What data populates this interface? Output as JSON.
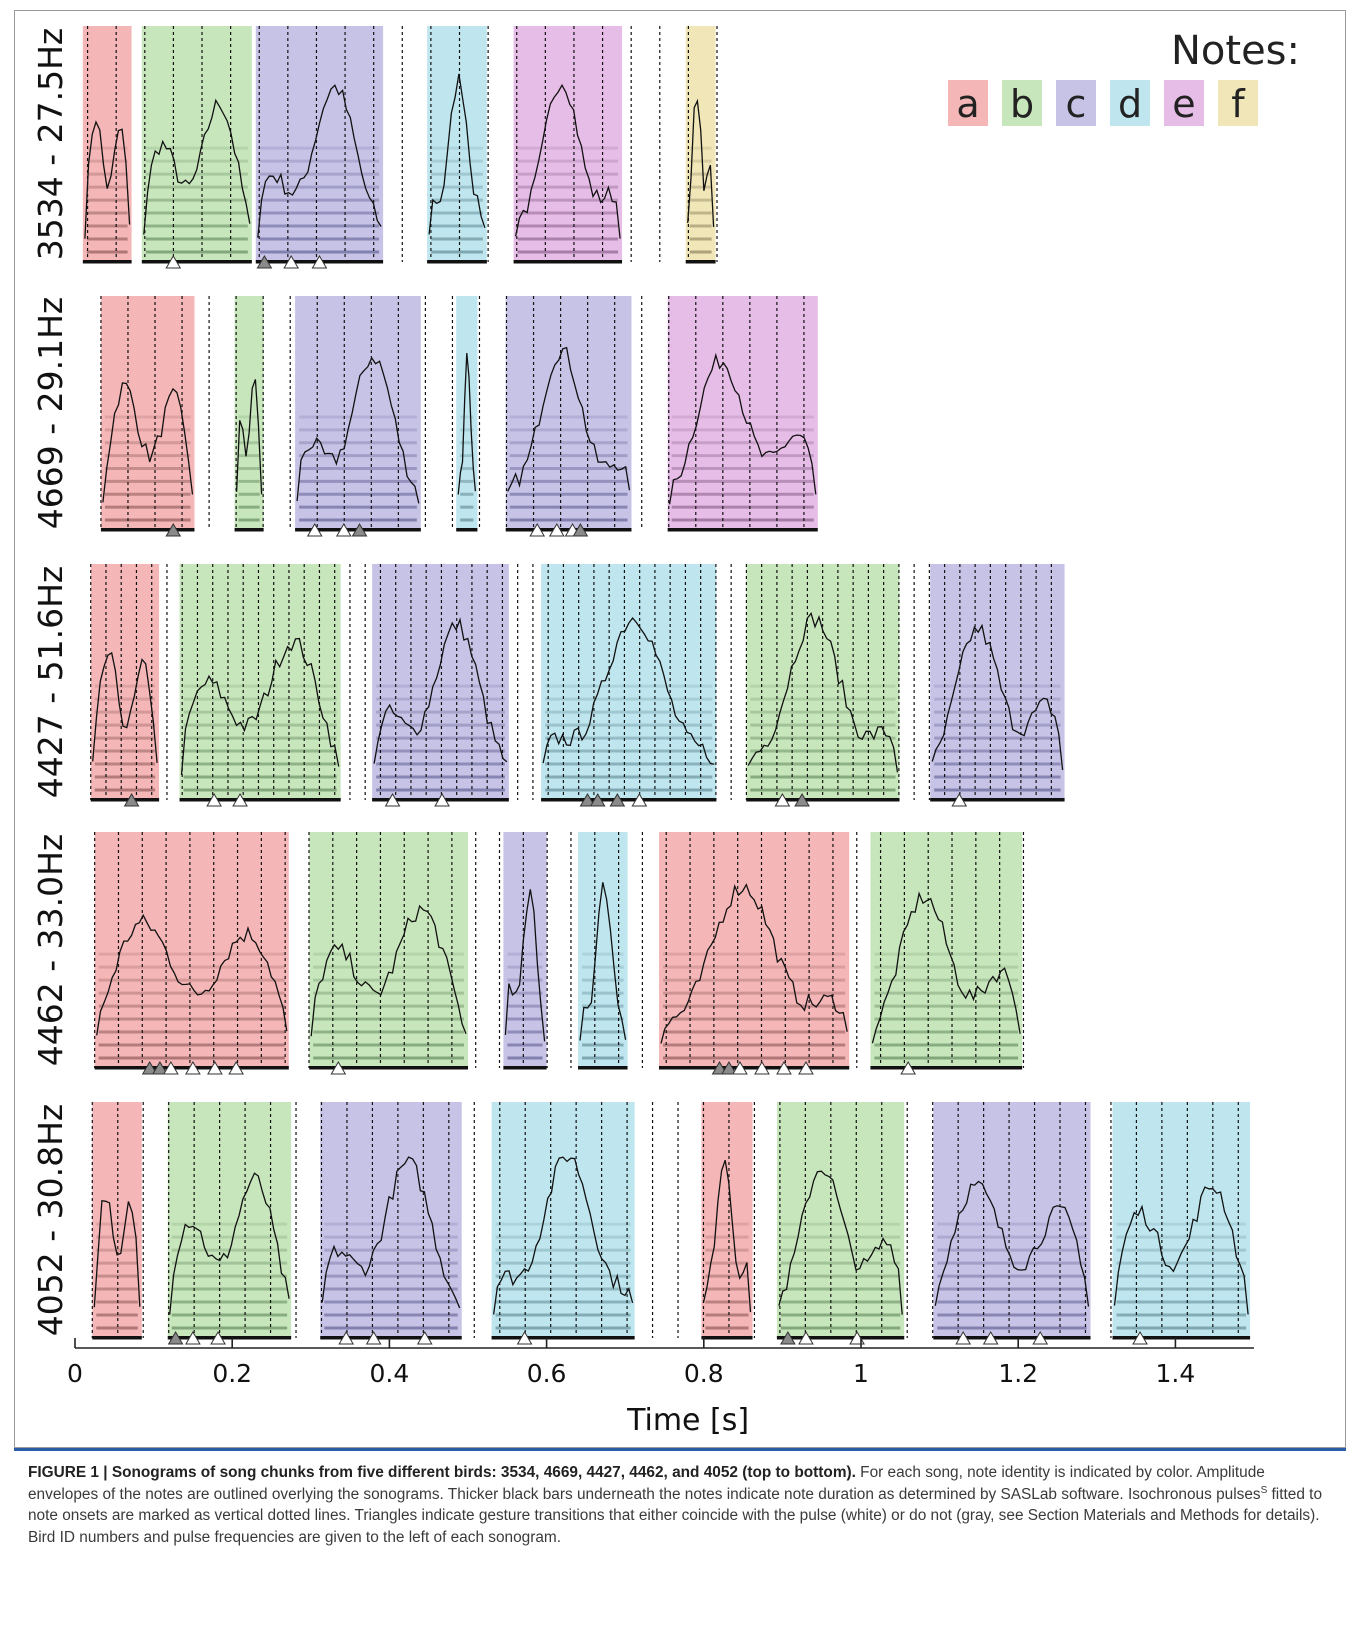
{
  "legend": {
    "title": "Notes:",
    "notes": [
      {
        "label": "a",
        "color": "#f4b6b6"
      },
      {
        "label": "b",
        "color": "#c8e6bc"
      },
      {
        "label": "c",
        "color": "#c7c3e6"
      },
      {
        "label": "d",
        "color": "#bfe6ef"
      },
      {
        "label": "e",
        "color": "#e6bde6"
      },
      {
        "label": "f",
        "color": "#f0e6b8"
      }
    ]
  },
  "chart_data": {
    "type": "sonogram-panels",
    "xlabel": "Time [s]",
    "xlim": [
      0,
      1.5
    ],
    "xticks": [
      0,
      0.2,
      0.4,
      0.6,
      0.8,
      1,
      1.2,
      1.4
    ],
    "xtick_labels": [
      "0",
      "0.2",
      "0.4",
      "0.6",
      "0.8",
      "1",
      "1.2",
      "1.4"
    ],
    "panels": [
      {
        "label": "3534 - 27.5Hz",
        "pulse_period": 0.0364,
        "pulse_start": 0.016,
        "pulse_end": 0.851,
        "notes": [
          {
            "note": "a",
            "start": 0.01,
            "end": 0.072
          },
          {
            "note": "b",
            "start": 0.085,
            "end": 0.225
          },
          {
            "note": "c",
            "start": 0.23,
            "end": 0.392
          },
          {
            "note": "d",
            "start": 0.448,
            "end": 0.524
          },
          {
            "note": "e",
            "start": 0.558,
            "end": 0.696
          },
          {
            "note": "f",
            "start": 0.777,
            "end": 0.815
          }
        ],
        "triangles": [
          {
            "t": 0.125,
            "kind": "white"
          },
          {
            "t": 0.241,
            "kind": "gray"
          },
          {
            "t": 0.275,
            "kind": "white"
          },
          {
            "t": 0.311,
            "kind": "white"
          }
        ]
      },
      {
        "label": "4669 - 29.1Hz",
        "pulse_period": 0.0344,
        "pulse_start": 0.033,
        "pulse_end": 0.958,
        "notes": [
          {
            "note": "a",
            "start": 0.033,
            "end": 0.152
          },
          {
            "note": "b",
            "start": 0.203,
            "end": 0.24
          },
          {
            "note": "c",
            "start": 0.28,
            "end": 0.44
          },
          {
            "note": "d",
            "start": 0.485,
            "end": 0.512
          },
          {
            "note": "c",
            "start": 0.548,
            "end": 0.708
          },
          {
            "note": "e",
            "start": 0.754,
            "end": 0.945
          }
        ],
        "triangles": [
          {
            "t": 0.125,
            "kind": "gray"
          },
          {
            "t": 0.305,
            "kind": "white"
          },
          {
            "t": 0.342,
            "kind": "white"
          },
          {
            "t": 0.362,
            "kind": "gray"
          },
          {
            "t": 0.588,
            "kind": "white"
          },
          {
            "t": 0.613,
            "kind": "white"
          },
          {
            "t": 0.633,
            "kind": "white"
          },
          {
            "t": 0.643,
            "kind": "gray"
          }
        ]
      },
      {
        "label": "4427 - 51.6Hz",
        "pulse_period": 0.0194,
        "pulse_start": 0.02,
        "pulse_end": 1.259,
        "notes": [
          {
            "note": "a",
            "start": 0.02,
            "end": 0.107
          },
          {
            "note": "b",
            "start": 0.133,
            "end": 0.338
          },
          {
            "note": "c",
            "start": 0.378,
            "end": 0.552
          },
          {
            "note": "d",
            "start": 0.593,
            "end": 0.816
          },
          {
            "note": "b",
            "start": 0.854,
            "end": 1.049
          },
          {
            "note": "c",
            "start": 1.088,
            "end": 1.259
          }
        ],
        "triangles": [
          {
            "t": 0.072,
            "kind": "gray"
          },
          {
            "t": 0.177,
            "kind": "white"
          },
          {
            "t": 0.21,
            "kind": "white"
          },
          {
            "t": 0.404,
            "kind": "white"
          },
          {
            "t": 0.467,
            "kind": "white"
          },
          {
            "t": 0.652,
            "kind": "gray"
          },
          {
            "t": 0.665,
            "kind": "gray"
          },
          {
            "t": 0.69,
            "kind": "gray"
          },
          {
            "t": 0.718,
            "kind": "white"
          },
          {
            "t": 0.9,
            "kind": "white"
          },
          {
            "t": 0.925,
            "kind": "gray"
          },
          {
            "t": 1.125,
            "kind": "white"
          }
        ]
      },
      {
        "label": "4462 - 33.0Hz",
        "pulse_period": 0.0303,
        "pulse_start": 0.025,
        "pulse_end": 1.229,
        "notes": [
          {
            "note": "a",
            "start": 0.025,
            "end": 0.272
          },
          {
            "note": "b",
            "start": 0.298,
            "end": 0.5
          },
          {
            "note": "c",
            "start": 0.545,
            "end": 0.6
          },
          {
            "note": "d",
            "start": 0.64,
            "end": 0.703
          },
          {
            "note": "a",
            "start": 0.743,
            "end": 0.985
          },
          {
            "note": "b",
            "start": 1.012,
            "end": 1.205
          }
        ],
        "triangles": [
          {
            "t": 0.095,
            "kind": "gray"
          },
          {
            "t": 0.108,
            "kind": "gray"
          },
          {
            "t": 0.122,
            "kind": "white"
          },
          {
            "t": 0.15,
            "kind": "white"
          },
          {
            "t": 0.178,
            "kind": "white"
          },
          {
            "t": 0.205,
            "kind": "white"
          },
          {
            "t": 0.335,
            "kind": "white"
          },
          {
            "t": 0.82,
            "kind": "gray"
          },
          {
            "t": 0.832,
            "kind": "gray"
          },
          {
            "t": 0.846,
            "kind": "white"
          },
          {
            "t": 0.874,
            "kind": "white"
          },
          {
            "t": 0.902,
            "kind": "white"
          },
          {
            "t": 0.93,
            "kind": "white"
          },
          {
            "t": 1.06,
            "kind": "white"
          }
        ]
      },
      {
        "label": "4052 - 30.8Hz",
        "pulse_period": 0.0324,
        "pulse_start": 0.022,
        "pulse_end": 1.5,
        "notes": [
          {
            "note": "a",
            "start": 0.022,
            "end": 0.085
          },
          {
            "note": "b",
            "start": 0.118,
            "end": 0.275
          },
          {
            "note": "c",
            "start": 0.312,
            "end": 0.492
          },
          {
            "note": "d",
            "start": 0.53,
            "end": 0.712
          },
          {
            "note": "a",
            "start": 0.797,
            "end": 0.862
          },
          {
            "note": "b",
            "start": 0.893,
            "end": 1.055
          },
          {
            "note": "c",
            "start": 1.092,
            "end": 1.292
          },
          {
            "note": "d",
            "start": 1.32,
            "end": 1.495
          }
        ],
        "triangles": [
          {
            "t": 0.128,
            "kind": "gray"
          },
          {
            "t": 0.15,
            "kind": "white"
          },
          {
            "t": 0.182,
            "kind": "white"
          },
          {
            "t": 0.345,
            "kind": "white"
          },
          {
            "t": 0.38,
            "kind": "white"
          },
          {
            "t": 0.445,
            "kind": "white"
          },
          {
            "t": 0.572,
            "kind": "white"
          },
          {
            "t": 0.907,
            "kind": "gray"
          },
          {
            "t": 0.93,
            "kind": "white"
          },
          {
            "t": 0.995,
            "kind": "white"
          },
          {
            "t": 1.13,
            "kind": "white"
          },
          {
            "t": 1.165,
            "kind": "white"
          },
          {
            "t": 1.228,
            "kind": "white"
          },
          {
            "t": 1.355,
            "kind": "white"
          }
        ]
      }
    ]
  },
  "caption": {
    "title": "FIGURE 1 | Sonograms of song chunks from five different birds: 3534, 4669, 4427, 4462, and 4052 (top to bottom).",
    "body_1": " For each song, note identity is indicated by color. Amplitude envelopes of the notes are outlined overlying the sonograms. Thicker black bars underneath the notes indicate note duration as determined by SASLab software. Isochronous pulses",
    "body_sup": "S",
    "body_2": " fitted to note onsets are marked as vertical dotted lines. Triangles indicate gesture transitions that either coincide with the pulse (white) or do not (gray, see Section Materials and Methods for details). Bird ID numbers and pulse frequencies are given to the left of each sonogram."
  }
}
